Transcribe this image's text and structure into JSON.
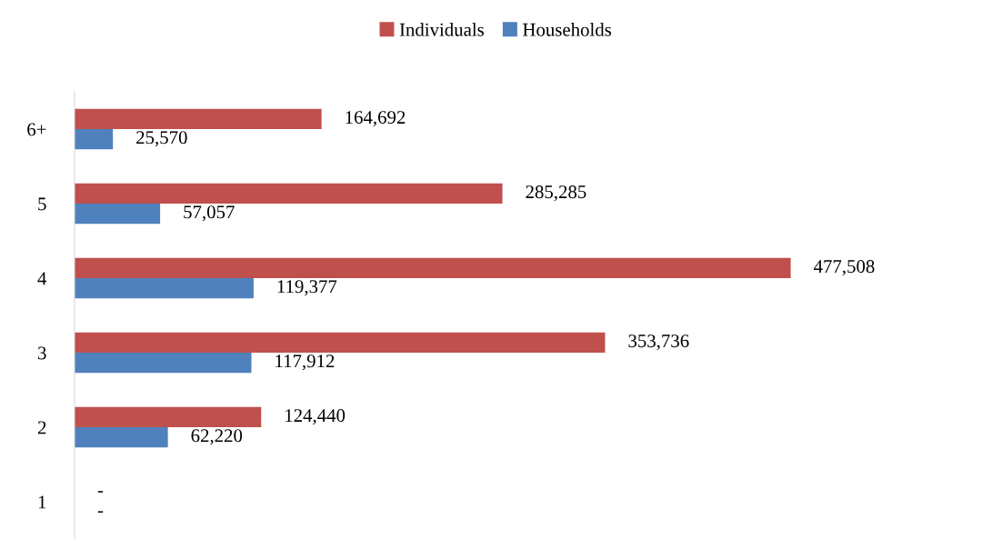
{
  "chart_data": {
    "type": "bar",
    "orientation": "horizontal",
    "categories": [
      "6+",
      "5",
      "4",
      "3",
      "2",
      "1"
    ],
    "series": [
      {
        "name": "Individuals",
        "color": "#c0504d",
        "values": [
          164692,
          285285,
          477508,
          353736,
          124440,
          0
        ],
        "value_labels": [
          "164,692",
          "285,285",
          "477,508",
          "353,736",
          "124,440",
          "-"
        ]
      },
      {
        "name": "Households",
        "color": "#4f81bd",
        "values": [
          25570,
          57057,
          119377,
          117912,
          62220,
          0
        ],
        "value_labels": [
          "25,570",
          "57,057",
          "119,377",
          "117,912",
          "62,220",
          "-"
        ]
      }
    ],
    "legend": "top",
    "tick_labels": "y"
  }
}
